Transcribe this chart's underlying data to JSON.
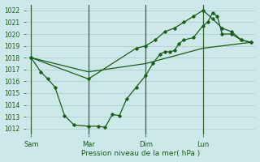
{
  "bg_color": "#cce8e8",
  "grid_color": "#aacccc",
  "line_color": "#1a5c1a",
  "marker_color": "#1a5c1a",
  "xlabel": "Pression niveau de la mer( hPa )",
  "ylim": [
    1011.5,
    1022.5
  ],
  "yticks": [
    1012,
    1013,
    1014,
    1015,
    1016,
    1017,
    1018,
    1019,
    1020,
    1021,
    1022
  ],
  "xtick_labels": [
    "Sam",
    "Mar",
    "Dim",
    "Lun"
  ],
  "xtick_positions": [
    0,
    12,
    24,
    36
  ],
  "vline_positions": [
    0,
    12,
    24,
    36
  ],
  "xlim": [
    -1,
    47
  ],
  "series1_x": [
    0,
    2,
    3.5,
    5,
    7,
    9,
    12,
    14,
    15.5,
    17,
    18.5,
    20,
    22,
    24,
    25.5,
    27,
    28,
    29,
    30,
    31,
    32,
    34,
    36,
    37,
    38,
    39,
    40,
    42,
    44,
    46
  ],
  "series1_y": [
    1018.0,
    1016.8,
    1016.2,
    1015.5,
    1013.1,
    1012.3,
    1012.2,
    1012.2,
    1012.1,
    1013.2,
    1013.1,
    1014.5,
    1015.5,
    1016.5,
    1017.5,
    1018.3,
    1018.5,
    1018.5,
    1018.6,
    1019.2,
    1019.5,
    1019.7,
    1020.7,
    1021.0,
    1021.8,
    1021.5,
    1020.0,
    1020.0,
    1019.5,
    1019.3
  ],
  "series2_x": [
    0,
    12,
    22,
    24,
    26,
    28,
    30,
    32,
    34,
    36,
    38,
    40,
    42,
    44,
    46
  ],
  "series2_y": [
    1018.0,
    1016.2,
    1018.8,
    1019.0,
    1019.5,
    1020.2,
    1020.5,
    1021.0,
    1021.5,
    1022.0,
    1021.3,
    1020.5,
    1020.2,
    1019.5,
    1019.3
  ],
  "series3_x": [
    0,
    12,
    24,
    36,
    46
  ],
  "series3_y": [
    1018.0,
    1016.8,
    1017.5,
    1018.8,
    1019.3
  ]
}
